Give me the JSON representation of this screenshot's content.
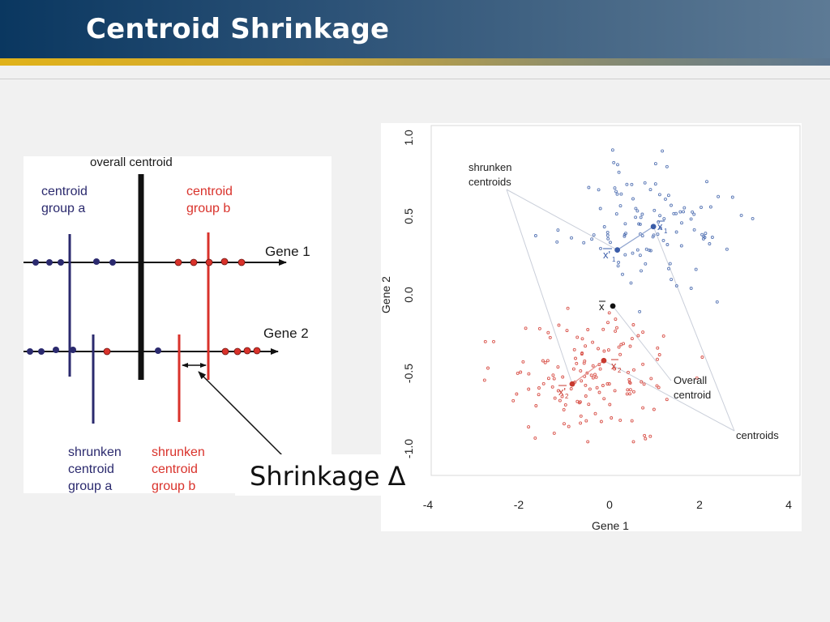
{
  "slide": {
    "title": "Centroid Shrinkage"
  },
  "left_diagram": {
    "overall_centroid_label": "overall centroid",
    "centroid_a_line1": "centroid",
    "centroid_a_line2": "group a",
    "centroid_b_line1": "centroid",
    "centroid_b_line2": "group b",
    "gene1_label": "Gene 1",
    "gene2_label": "Gene 2",
    "shrunken_a_line1": "shrunken",
    "shrunken_a_line2": "centroid",
    "shrunken_a_line3": "group a",
    "shrunken_b_line1": "shrunken",
    "shrunken_b_line2": "centroid",
    "shrunken_b_line3": "group b",
    "colors": {
      "group_a": "#2b2a6e",
      "group_b": "#d9322b",
      "overall": "#111111"
    }
  },
  "shrinkage_label": "Shrinkage Δ",
  "chart_data": {
    "type": "scatter",
    "xlabel": "Gene 1",
    "ylabel": "Gene 2",
    "xlim": [
      -4,
      4
    ],
    "ylim": [
      -1.0,
      1.0
    ],
    "xticks": [
      "-4",
      "-2",
      "0",
      "2",
      "4"
    ],
    "yticks": [
      "1.0",
      "0.5",
      "0.0",
      "-0.5",
      "-1.0"
    ],
    "grid": false,
    "annotations": {
      "shrunken_line1": "shrunken",
      "shrunken_line2": "centroids",
      "overall_line1": "Overall",
      "overall_line2": "centroid",
      "centroids": "centroids",
      "xbar": "x",
      "xbar1": "x",
      "sub1": "1",
      "xbar2": "x",
      "sub2": "2",
      "xprime1": "x'",
      "xprime2": "x'"
    },
    "series": [
      {
        "color": "#5a78b6",
        "center": [
          1.0,
          0.45
        ],
        "spread": [
          0.95,
          0.2
        ],
        "count": 110
      },
      {
        "color": "#d9544c",
        "center": [
          -0.3,
          -0.55
        ],
        "spread": [
          1.0,
          0.2
        ],
        "count": 140
      }
    ],
    "centroids": {
      "overall": [
        0.1,
        -0.08
      ],
      "group1": [
        1.0,
        0.43
      ],
      "group1_shrunken": [
        0.2,
        0.28
      ],
      "group2": [
        -0.1,
        -0.43
      ],
      "group2_shrunken": [
        -0.8,
        -0.58
      ]
    },
    "colors": {
      "series1": "#3a5ca8",
      "series2": "#c8392f",
      "overall": "#111111",
      "guide": "#c9ced9"
    }
  }
}
